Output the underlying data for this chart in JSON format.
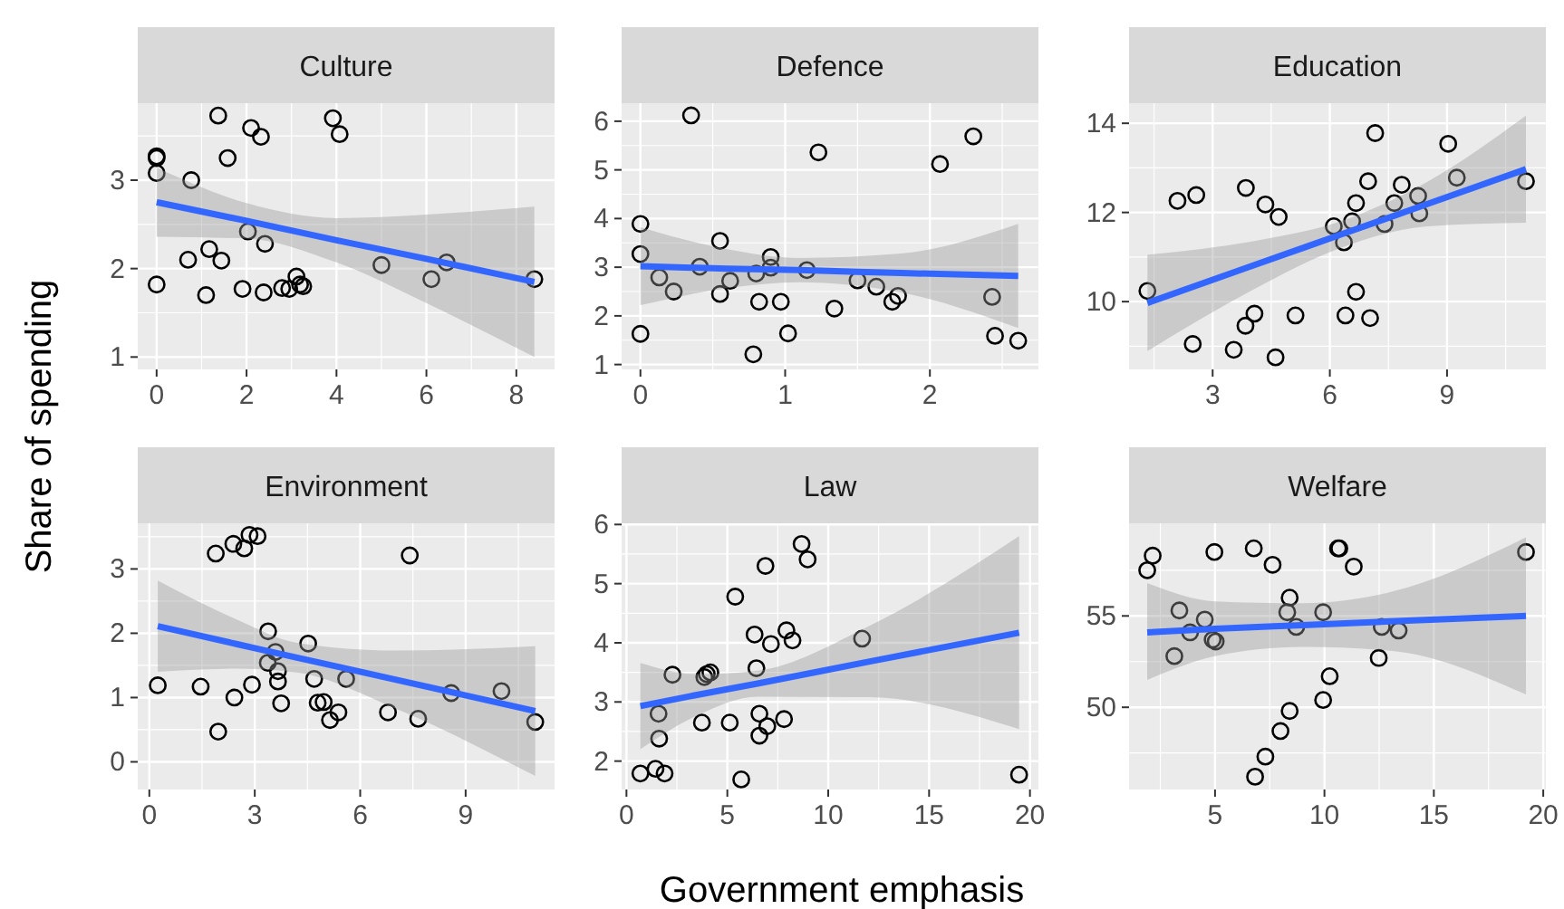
{
  "chart_data": [
    {
      "type": "scatter",
      "title": "Culture",
      "ylabel": "Share of spending",
      "xlim": [
        -0.42,
        8.85
      ],
      "ylim": [
        0.86,
        3.87
      ],
      "xticks": [
        0,
        2,
        4,
        6,
        8
      ],
      "yticks": [
        1,
        2,
        3
      ],
      "grid": true,
      "marker": "circle",
      "series": [
        {
          "color": "#000000",
          "x": [
            0,
            0,
            0,
            0,
            0.77,
            1.37,
            2.1,
            2.32,
            1.58,
            3.92,
            4.07,
            2.03,
            2.41,
            1.17,
            0.7,
            1.44,
            1.1,
            1.91,
            2.38,
            2.79,
            2.95,
            3.11,
            3.19,
            3.26,
            5.0,
            6.11,
            6.45,
            8.4
          ],
          "values": [
            3.25,
            3.27,
            3.08,
            1.82,
            3.0,
            3.73,
            3.59,
            3.49,
            3.25,
            3.7,
            3.52,
            2.42,
            2.28,
            2.22,
            2.1,
            2.09,
            1.7,
            1.77,
            1.73,
            1.78,
            1.77,
            1.91,
            1.82,
            1.8,
            2.04,
            1.88,
            2.07,
            1.88
          ]
        },
        {
          "type": "line",
          "marker": "none",
          "color": "#3366ff",
          "x": [
            0,
            2,
            4,
            6,
            8.4
          ],
          "values": [
            2.75,
            2.54,
            2.32,
            2.11,
            1.85
          ],
          "lower": [
            2.36,
            2.34,
            2.07,
            1.61,
            1.0
          ],
          "upper": [
            3.14,
            2.74,
            2.57,
            2.61,
            2.7
          ]
        }
      ]
    },
    {
      "type": "scatter",
      "title": "Defence",
      "xlim": [
        -0.13,
        2.75
      ],
      "ylim": [
        0.9,
        6.37
      ],
      "xticks": [
        0,
        1,
        2
      ],
      "yticks": [
        1,
        2,
        3,
        4,
        5,
        6
      ],
      "grid": true,
      "marker": "circle",
      "series": [
        {
          "color": "#000000",
          "x": [
            0.35,
            0,
            0,
            0,
            0.13,
            0.23,
            0.41,
            0.55,
            0.55,
            0.62,
            0.8,
            0.82,
            0.9,
            0.9,
            0.78,
            0.97,
            1.02,
            1.15,
            1.23,
            1.34,
            1.5,
            1.63,
            1.74,
            1.78,
            2.07,
            2.3,
            2.43,
            2.45,
            2.61
          ],
          "values": [
            6.12,
            3.89,
            3.27,
            1.63,
            2.79,
            2.5,
            3.01,
            3.54,
            2.45,
            2.72,
            2.87,
            2.29,
            3.21,
            2.99,
            1.21,
            2.29,
            1.64,
            2.94,
            5.36,
            2.15,
            2.73,
            2.6,
            2.29,
            2.41,
            5.12,
            5.69,
            2.39,
            1.59,
            1.49
          ]
        },
        {
          "type": "line",
          "marker": "none",
          "color": "#3366ff",
          "x": [
            0,
            0.6,
            1.1,
            1.8,
            2.61
          ],
          "values": [
            3.02,
            2.97,
            2.94,
            2.88,
            2.82
          ],
          "lower": [
            2.22,
            2.57,
            2.69,
            2.48,
            1.75
          ],
          "upper": [
            3.82,
            3.37,
            3.19,
            3.28,
            3.89
          ]
        }
      ]
    },
    {
      "type": "scatter",
      "title": "Education",
      "xlim": [
        0.86,
        11.53
      ],
      "ylim": [
        8.48,
        14.45
      ],
      "xticks": [
        3,
        6,
        9
      ],
      "yticks": [
        10,
        12,
        14
      ],
      "grid": true,
      "marker": "circle",
      "series": [
        {
          "color": "#000000",
          "x": [
            1.33,
            2.1,
            2.58,
            2.49,
            3.54,
            3.85,
            3.84,
            4.07,
            4.35,
            4.69,
            4.61,
            5.12,
            6.1,
            6.36,
            6.57,
            6.67,
            6.67,
            6.4,
            7.03,
            6.98,
            7.16,
            7.4,
            7.65,
            7.84,
            8.26,
            8.29,
            9.03,
            9.25,
            11.02
          ],
          "values": [
            10.24,
            12.26,
            12.39,
            9.05,
            8.92,
            12.55,
            9.46,
            9.73,
            12.18,
            11.9,
            8.75,
            9.69,
            11.69,
            11.33,
            11.8,
            12.21,
            10.22,
            9.69,
            9.63,
            12.7,
            13.78,
            11.74,
            12.21,
            12.62,
            12.37,
            11.98,
            13.54,
            12.78,
            12.7
          ]
        },
        {
          "type": "line",
          "marker": "none",
          "color": "#3366ff",
          "x": [
            1.33,
            4,
            6.3,
            8.5,
            11.02
          ],
          "values": [
            9.97,
            10.8,
            11.51,
            12.19,
            12.97
          ],
          "lower": [
            8.89,
            10.25,
            11.21,
            11.69,
            11.77
          ],
          "upper": [
            11.05,
            11.35,
            11.81,
            12.69,
            14.17
          ]
        }
      ]
    },
    {
      "type": "scatter",
      "title": "Environment",
      "xlim": [
        -0.33,
        11.53
      ],
      "ylim": [
        -0.43,
        3.71
      ],
      "xticks": [
        0,
        3,
        6,
        9
      ],
      "yticks": [
        0,
        1,
        2,
        3
      ],
      "grid": true,
      "marker": "circle",
      "series": [
        {
          "color": "#000000",
          "x": [
            0.24,
            1.46,
            1.96,
            1.89,
            2.39,
            2.7,
            2.85,
            3.08,
            2.42,
            2.92,
            3.38,
            3.59,
            3.37,
            3.66,
            3.66,
            3.75,
            4.52,
            4.69,
            4.79,
            4.96,
            5.14,
            5.38,
            5.6,
            6.79,
            7.41,
            7.65,
            8.59,
            10.02,
            10.98
          ],
          "values": [
            1.19,
            1.17,
            0.47,
            3.24,
            3.39,
            3.32,
            3.53,
            3.51,
            1.0,
            1.2,
            2.03,
            1.71,
            1.54,
            1.41,
            1.25,
            0.91,
            1.84,
            1.29,
            0.92,
            0.93,
            0.65,
            0.77,
            1.29,
            0.77,
            3.21,
            0.67,
            1.07,
            1.1,
            0.62
          ]
        },
        {
          "type": "line",
          "marker": "none",
          "color": "#3366ff",
          "x": [
            0.24,
            2.5,
            4.2,
            7,
            10.98
          ],
          "values": [
            2.11,
            1.83,
            1.62,
            1.28,
            0.79
          ],
          "lower": [
            1.4,
            1.45,
            1.39,
            0.83,
            -0.22
          ],
          "upper": [
            2.82,
            2.21,
            1.85,
            1.73,
            1.8
          ]
        }
      ]
    },
    {
      "type": "scatter",
      "title": "Law",
      "xlabel": "Government emphasis",
      "xlim": [
        -0.24,
        20.42
      ],
      "ylim": [
        1.52,
        6.02
      ],
      "xticks": [
        0,
        5,
        10,
        15,
        20
      ],
      "yticks": [
        2,
        3,
        4,
        5,
        6
      ],
      "grid": true,
      "marker": "circle",
      "series": [
        {
          "color": "#000000",
          "x": [
            0.69,
            1.44,
            1.89,
            1.59,
            1.62,
            2.28,
            3.74,
            3.86,
            3.98,
            4.16,
            5.12,
            5.39,
            5.69,
            6.35,
            6.44,
            6.59,
            6.59,
            6.98,
            6.89,
            7.16,
            7.81,
            7.93,
            8.23,
            8.68,
            8.98,
            11.68,
            19.46
          ],
          "values": [
            1.79,
            1.87,
            1.79,
            2.8,
            2.38,
            3.46,
            2.65,
            3.42,
            3.47,
            3.5,
            2.65,
            4.78,
            1.69,
            4.14,
            3.57,
            2.8,
            2.43,
            2.59,
            5.3,
            3.98,
            2.71,
            4.21,
            4.04,
            5.67,
            5.41,
            4.07,
            1.77
          ]
        },
        {
          "type": "line",
          "marker": "none",
          "color": "#3366ff",
          "x": [
            0.69,
            3.5,
            6.5,
            12,
            19.46
          ],
          "values": [
            2.93,
            3.12,
            3.31,
            3.68,
            4.17
          ],
          "lower": [
            2.2,
            2.77,
            3.09,
            3.08,
            2.54
          ],
          "upper": [
            3.66,
            3.47,
            3.53,
            4.28,
            5.8
          ]
        }
      ]
    },
    {
      "type": "scatter",
      "title": "Welfare",
      "xlim": [
        1.07,
        20.12
      ],
      "ylim": [
        45.5,
        60.07
      ],
      "xticks": [
        5,
        10,
        15,
        20
      ],
      "yticks": [
        50,
        55
      ],
      "grid": true,
      "marker": "circle",
      "series": [
        {
          "color": "#000000",
          "x": [
            1.9,
            2.15,
            3.37,
            3.14,
            3.86,
            4.53,
            4.89,
            5.03,
            4.97,
            6.77,
            7.63,
            8.41,
            8.3,
            8.71,
            6.83,
            7.3,
            7.99,
            8.41,
            9.94,
            9.94,
            10.24,
            10.62,
            10.68,
            11.34,
            12.48,
            12.62,
            13.39,
            19.21
          ],
          "values": [
            57.5,
            58.3,
            55.3,
            52.8,
            54.1,
            54.8,
            53.7,
            53.6,
            58.5,
            58.7,
            57.8,
            56.0,
            55.2,
            54.4,
            46.2,
            47.3,
            48.7,
            49.8,
            55.2,
            50.4,
            51.7,
            58.7,
            58.7,
            57.7,
            52.7,
            54.4,
            54.2,
            58.5
          ]
        },
        {
          "type": "line",
          "marker": "none",
          "color": "#3366ff",
          "x": [
            1.9,
            5,
            9,
            13,
            19.21
          ],
          "values": [
            54.1,
            54.3,
            54.5,
            54.7,
            55.0
          ],
          "lower": [
            51.5,
            52.8,
            53.3,
            53.1,
            50.7
          ],
          "upper": [
            56.8,
            55.8,
            55.7,
            56.3,
            59.3
          ]
        }
      ]
    }
  ]
}
